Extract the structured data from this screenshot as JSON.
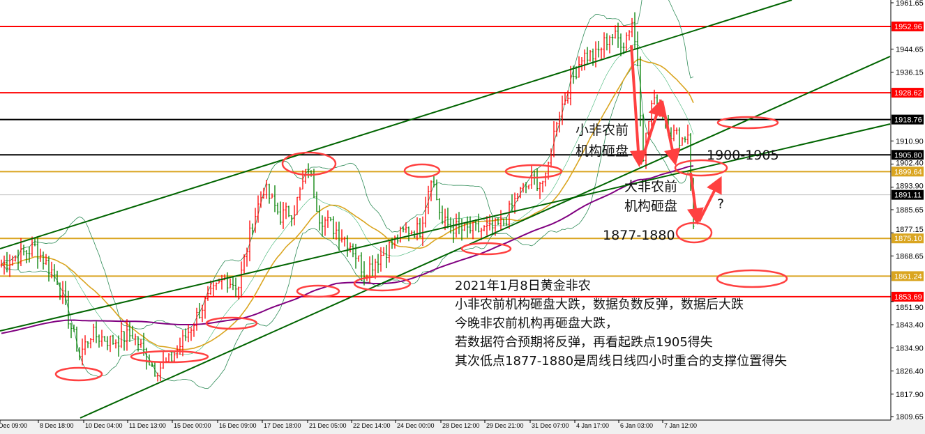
{
  "chart_data": {
    "type": "candlestick",
    "ylim": [
      1809.65,
      1961.65
    ],
    "grid": false,
    "y_ticks": [
      "1961.65",
      "1944.65",
      "1936.15",
      "1910.90",
      "1902.40",
      "1893.90",
      "1885.65",
      "1877.15",
      "1868.65",
      "1851.90",
      "1843.40",
      "1834.90",
      "1826.40",
      "1817.90",
      "1809.65"
    ],
    "x_ticks": [
      "Dec 09:00",
      "8 Dec 18:00",
      "10 Dec 04:00",
      "11 Dec 13:00",
      "15 Dec 00:00",
      "16 Dec 09:00",
      "17 Dec 18:00",
      "21 Dec 05:00",
      "22 Dec 14:00",
      "24 Dec 00:00",
      "28 Dec 12:00",
      "29 Dec 21:00",
      "31 Dec 07:00",
      "4 Jan 17:00",
      "6 Jan 03:00",
      "7 Jan 12:00"
    ],
    "price_path": [
      [
        0,
        1865.4
      ],
      [
        5,
        1868.0
      ],
      [
        12,
        1871.8
      ],
      [
        20,
        1860.3
      ],
      [
        25,
        1842.4
      ],
      [
        28,
        1832.2
      ],
      [
        32,
        1839.9
      ],
      [
        40,
        1837.3
      ],
      [
        47,
        1839.9
      ],
      [
        55,
        1827.0
      ],
      [
        60,
        1829.6
      ],
      [
        65,
        1837.3
      ],
      [
        72,
        1850.1
      ],
      [
        80,
        1860.3
      ],
      [
        85,
        1857.7
      ],
      [
        90,
        1880.8
      ],
      [
        94,
        1893.6
      ],
      [
        100,
        1883.3
      ],
      [
        105,
        1885.9
      ],
      [
        110,
        1901.3
      ],
      [
        114,
        1883.3
      ],
      [
        120,
        1878.2
      ],
      [
        125,
        1873.1
      ],
      [
        130,
        1862.9
      ],
      [
        135,
        1868.0
      ],
      [
        140,
        1873.1
      ],
      [
        145,
        1878.2
      ],
      [
        150,
        1878.2
      ],
      [
        154,
        1898.7
      ],
      [
        158,
        1880.8
      ],
      [
        165,
        1878.2
      ],
      [
        175,
        1878.2
      ],
      [
        180,
        1880.8
      ],
      [
        185,
        1891.0
      ],
      [
        190,
        1896.1
      ],
      [
        195,
        1896.1
      ],
      [
        199,
        1919.2
      ],
      [
        203,
        1929.4
      ],
      [
        208,
        1942.2
      ],
      [
        213,
        1942.2
      ],
      [
        218,
        1949.9
      ],
      [
        223,
        1947.3
      ],
      [
        226,
        1955.0
      ],
      [
        228,
        1939.6
      ],
      [
        230,
        1906.4
      ],
      [
        233,
        1924.3
      ],
      [
        236,
        1924.3
      ],
      [
        240,
        1914.0
      ],
      [
        244,
        1911.5
      ],
      [
        246,
        1914.0
      ],
      [
        248,
        1878.2
      ]
    ],
    "horizontal_levels": [
      {
        "price": "1952.96",
        "color": "#ff0000",
        "label_bg": "#ff0000"
      },
      {
        "price": "1928.62",
        "color": "#ff0000",
        "label_bg": "#ff0000"
      },
      {
        "price": "1918.76",
        "color": "#000000",
        "label_bg": "#000000"
      },
      {
        "price": "1905.80",
        "color": "#000000",
        "label_bg": "#000000"
      },
      {
        "price": "1899.64",
        "color": "#daa520",
        "label_bg": "#daa520"
      },
      {
        "price": "1891.11",
        "color": "#c0c0c0",
        "label_bg": "#000000"
      },
      {
        "price": "1875.10",
        "color": "#daa520",
        "label_bg": "#daa520"
      },
      {
        "price": "1861.24",
        "color": "#daa520",
        "label_bg": "#daa520"
      },
      {
        "price": "1853.69",
        "color": "#ff0000",
        "label_bg": "#ff0000"
      }
    ],
    "colors": {
      "up": "#ff0000",
      "down": "#008000",
      "ma_fast": "#daa520",
      "ma_slow": "#800080",
      "bands": "#2e8b57",
      "trendline": "#006400",
      "annotation": "#ff4040"
    }
  },
  "annotations": {
    "small_nfp_1": "小非农前",
    "small_nfp_2": "机构砸盘",
    "range_1900": "1900-1905",
    "big_nfp_1": "大非农前",
    "big_nfp_2": "机构砸盘",
    "question": "?",
    "range_1877": "1877-1880"
  },
  "note": {
    "title": "2021年1月8日黄金非农",
    "lines": [
      "小非农前机构砸盘大跌，数据负数反弹，数据后大跌",
      "今晚非农前机构再砸盘大跌，",
      "若数据符合预期将反弹，再看起跌点1905得失",
      "其次低点1877-1880是周线日线四小时重合的支撑位置得失"
    ]
  }
}
